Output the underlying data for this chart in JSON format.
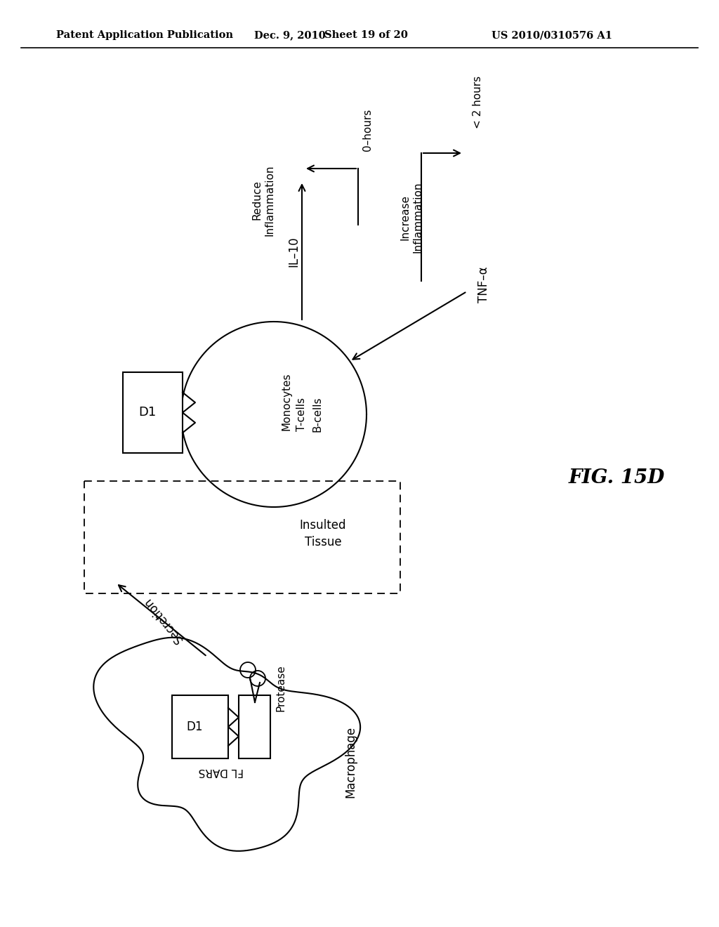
{
  "header_left": "Patent Application Publication",
  "header_center": "Dec. 9, 2010   Sheet 19 of 20",
  "header_right": "US 2010/0310576 A1",
  "fig_label": "FIG. 15D",
  "background_color": "#ffffff"
}
